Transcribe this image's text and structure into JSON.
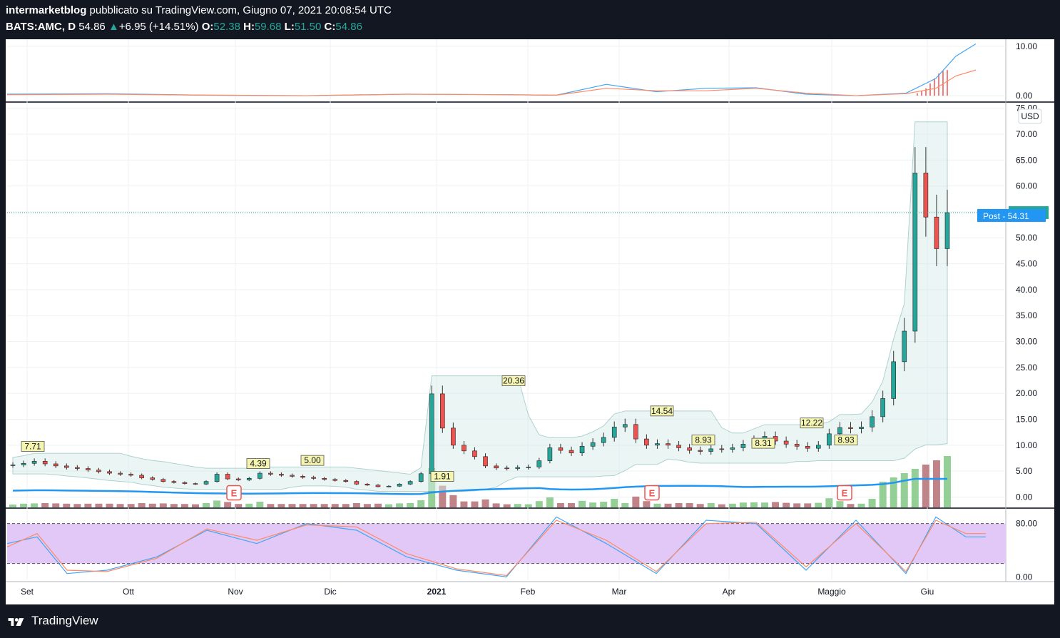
{
  "header": {
    "author": "intermarketblog",
    "published_text": "pubblicato su TradingView.com, Giugno 07, 2021 20:08:54 UTC",
    "symbol": "BATS:AMC, D",
    "last": "54.86",
    "change": "+6.95 (+14.51%)",
    "o_label": "O:",
    "o_value": "52.38",
    "h_label": "H:",
    "h_value": "59.68",
    "l_label": "L:",
    "l_value": "51.50",
    "c_label": "C:",
    "c_value": "54.86"
  },
  "footer": {
    "brand": "TradingView"
  },
  "colors": {
    "up": "#26a69a",
    "down": "#ef5350",
    "accent": "#2196f3",
    "rsi_band": "#e1c8f7"
  },
  "chart_data": [
    {
      "type": "line",
      "pane": "top-oscillator",
      "y_ticks": [
        "10.00",
        "0.00"
      ],
      "ylim": [
        -1,
        11
      ],
      "series": [
        {
          "role": "blue-line",
          "x": [
            0,
            0.1,
            0.2,
            0.3,
            0.4,
            0.5,
            0.55,
            0.6,
            0.65,
            0.7,
            0.75,
            0.8,
            0.85,
            0.9,
            0.93,
            0.95,
            0.97
          ],
          "values": [
            0.3,
            0.4,
            0.1,
            0.0,
            0.3,
            0.2,
            0.1,
            2.3,
            0.8,
            1.5,
            1.6,
            0.3,
            0.0,
            0.5,
            3.5,
            8.0,
            10.5
          ]
        },
        {
          "role": "orange-line",
          "x": [
            0,
            0.1,
            0.2,
            0.3,
            0.4,
            0.5,
            0.55,
            0.6,
            0.65,
            0.7,
            0.75,
            0.8,
            0.85,
            0.9,
            0.93,
            0.95,
            0.97
          ],
          "values": [
            0.2,
            0.3,
            0.1,
            0.0,
            0.3,
            0.2,
            0.1,
            1.5,
            1.0,
            1.0,
            1.5,
            0.5,
            0.0,
            0.4,
            1.5,
            4.0,
            5.2
          ]
        }
      ]
    },
    {
      "type": "candlestick",
      "pane": "price",
      "currency": "USD",
      "y_ticks": [
        "75.00",
        "70.00",
        "65.00",
        "60.00",
        "55.00",
        "50.00",
        "45.00",
        "40.00",
        "35.00",
        "30.00",
        "25.00",
        "20.00",
        "15.00",
        "10.00",
        "5.00",
        "0.00"
      ],
      "ylim": [
        -2,
        75.5
      ],
      "x_labels": [
        "Set",
        "Ott",
        "Nov",
        "Dic",
        "2021",
        "Feb",
        "Mar",
        "Apr",
        "Maggio",
        "Giu"
      ],
      "last_price_label": "54.86",
      "post_label": "Post",
      "post_price": "54.31",
      "annotations": [
        "7.71",
        "4.39",
        "5.00",
        "1.91",
        "20.36",
        "14.54",
        "8.93",
        "8.31",
        "12.22",
        "8.93"
      ],
      "earnings_marker": "E",
      "closes": [
        6.2,
        6.5,
        6.9,
        6.4,
        6.0,
        5.7,
        5.5,
        5.2,
        4.9,
        4.6,
        4.4,
        4.2,
        3.7,
        3.4,
        3.0,
        2.8,
        2.6,
        2.5,
        3.0,
        4.4,
        3.5,
        3.3,
        3.6,
        4.6,
        4.4,
        4.2,
        4.0,
        3.8,
        3.6,
        3.4,
        3.2,
        3.0,
        2.5,
        2.3,
        2.0,
        2.1,
        2.5,
        3.0,
        4.5,
        19.9,
        13.3,
        10.0,
        8.9,
        7.8,
        6.0,
        5.6,
        5.5,
        5.7,
        5.8,
        7.0,
        9.5,
        9.0,
        8.5,
        9.8,
        10.5,
        11.5,
        13.5,
        14.0,
        11.2,
        10.0,
        10.3,
        10.0,
        9.5,
        9.0,
        8.8,
        9.3,
        9.2,
        9.5,
        10.2,
        11.0,
        11.7,
        10.8,
        10.2,
        9.8,
        9.4,
        10.0,
        12.2,
        13.4,
        13.2,
        13.5,
        15.5,
        19.0,
        26.1,
        32.0,
        62.5,
        54.0,
        47.9,
        54.86
      ],
      "volume_scale": "relative",
      "bb_upper_peak": 15.0,
      "ichimoku_visible": true
    },
    {
      "type": "line",
      "pane": "rsi-stochastic",
      "y_ticks": [
        "80.00",
        "0.00"
      ],
      "ylim": [
        -5,
        100
      ],
      "band": [
        20,
        80
      ],
      "series": [
        {
          "role": "blue-line",
          "x": [
            0,
            0.03,
            0.06,
            0.1,
            0.15,
            0.2,
            0.25,
            0.3,
            0.35,
            0.4,
            0.45,
            0.5,
            0.55,
            0.6,
            0.65,
            0.7,
            0.75,
            0.8,
            0.85,
            0.9,
            0.93,
            0.96,
            0.98
          ],
          "values": [
            50,
            60,
            5,
            10,
            30,
            70,
            50,
            80,
            70,
            30,
            10,
            0,
            90,
            50,
            5,
            85,
            80,
            10,
            85,
            5,
            90,
            60,
            60
          ]
        },
        {
          "role": "orange-line",
          "x": [
            0,
            0.03,
            0.06,
            0.1,
            0.15,
            0.2,
            0.25,
            0.3,
            0.35,
            0.4,
            0.45,
            0.5,
            0.55,
            0.6,
            0.65,
            0.7,
            0.75,
            0.8,
            0.85,
            0.9,
            0.93,
            0.96,
            0.98
          ],
          "values": [
            45,
            65,
            10,
            8,
            28,
            72,
            55,
            78,
            75,
            35,
            12,
            2,
            85,
            55,
            8,
            80,
            82,
            15,
            80,
            8,
            85,
            65,
            65
          ]
        }
      ]
    }
  ]
}
